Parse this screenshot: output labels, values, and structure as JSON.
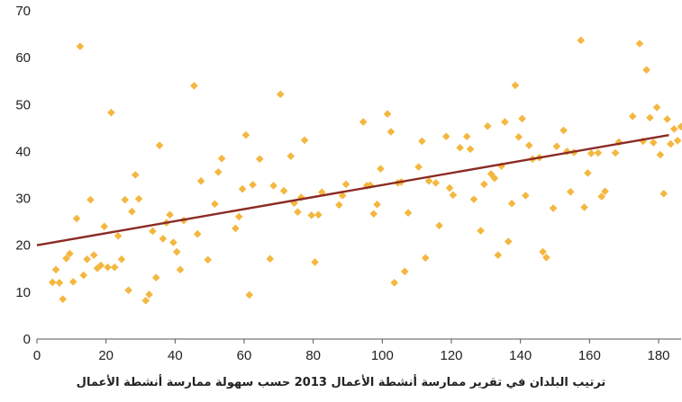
{
  "chart_data": {
    "type": "scatter",
    "title": "",
    "xlabel": "ترتيب البلدان في تقرير ممارسة أنشطة الأعمال 2013 حسب سهولة ممارسة أنشطة الأعمال",
    "ylabel": "",
    "xlim": [
      0,
      186
    ],
    "ylim": [
      0,
      70
    ],
    "x_ticks": [
      0,
      20,
      40,
      60,
      80,
      100,
      120,
      140,
      160,
      180
    ],
    "y_ticks": [
      0,
      10,
      20,
      30,
      40,
      50,
      60,
      70
    ],
    "grid": false,
    "legend": "none",
    "colors": {
      "points": "#F4B73F",
      "trendline": "#8B2A24",
      "axis": "#555555"
    },
    "trendline": {
      "x": [
        0,
        183
      ],
      "y": [
        20.0,
        43.5
      ]
    },
    "series": [
      {
        "points": [
          [
            4.5,
            12.1
          ],
          [
            5.5,
            14.8
          ],
          [
            6.5,
            12.0
          ],
          [
            7.5,
            8.5
          ],
          [
            8.5,
            17.2
          ],
          [
            9.5,
            18.2
          ],
          [
            10.5,
            12.2
          ],
          [
            11.5,
            25.7
          ],
          [
            12.5,
            62.4
          ],
          [
            13.5,
            13.6
          ],
          [
            14.5,
            17.0
          ],
          [
            15.5,
            29.7
          ],
          [
            16.5,
            17.9
          ],
          [
            17.5,
            15.1
          ],
          [
            18.5,
            15.7
          ],
          [
            19.5,
            24.0
          ],
          [
            20.5,
            15.3
          ],
          [
            21.5,
            48.3
          ],
          [
            22.5,
            15.3
          ],
          [
            23.5,
            22.0
          ],
          [
            24.5,
            17.0
          ],
          [
            25.5,
            29.7
          ],
          [
            26.5,
            10.4
          ],
          [
            27.5,
            27.2
          ],
          [
            28.5,
            35.0
          ],
          [
            29.5,
            29.9
          ],
          [
            31.5,
            8.2
          ],
          [
            32.5,
            9.5
          ],
          [
            33.5,
            23.0
          ],
          [
            34.5,
            13.1
          ],
          [
            35.5,
            41.3
          ],
          [
            36.5,
            21.4
          ],
          [
            37.5,
            24.8
          ],
          [
            38.5,
            26.5
          ],
          [
            39.5,
            20.6
          ],
          [
            40.5,
            18.6
          ],
          [
            41.5,
            14.8
          ],
          [
            42.5,
            25.3
          ],
          [
            45.5,
            54.0
          ],
          [
            46.5,
            22.4
          ],
          [
            47.5,
            33.7
          ],
          [
            49.5,
            16.9
          ],
          [
            51.5,
            28.8
          ],
          [
            52.5,
            35.6
          ],
          [
            53.5,
            38.5
          ],
          [
            57.5,
            23.6
          ],
          [
            58.5,
            26.1
          ],
          [
            59.5,
            32.0
          ],
          [
            60.5,
            43.5
          ],
          [
            61.5,
            9.4
          ],
          [
            62.5,
            32.9
          ],
          [
            64.5,
            38.4
          ],
          [
            67.5,
            17.1
          ],
          [
            68.5,
            32.7
          ],
          [
            70.5,
            52.2
          ],
          [
            71.5,
            31.6
          ],
          [
            73.5,
            39.0
          ],
          [
            74.5,
            29.0
          ],
          [
            75.5,
            27.1
          ],
          [
            76.5,
            30.2
          ],
          [
            77.5,
            42.4
          ],
          [
            79.5,
            26.4
          ],
          [
            80.5,
            16.4
          ],
          [
            81.5,
            26.5
          ],
          [
            82.5,
            31.3
          ],
          [
            87.5,
            28.6
          ],
          [
            88.5,
            30.6
          ],
          [
            89.5,
            33.0
          ],
          [
            94.5,
            46.3
          ],
          [
            95.5,
            32.7
          ],
          [
            96.5,
            32.8
          ],
          [
            97.5,
            26.7
          ],
          [
            98.5,
            28.7
          ],
          [
            99.5,
            36.3
          ],
          [
            101.5,
            48.0
          ],
          [
            102.5,
            44.2
          ],
          [
            103.5,
            12.0
          ],
          [
            104.5,
            33.3
          ],
          [
            105.5,
            33.5
          ],
          [
            106.5,
            14.4
          ],
          [
            107.5,
            26.9
          ],
          [
            110.5,
            36.7
          ],
          [
            111.5,
            42.2
          ],
          [
            112.5,
            17.3
          ],
          [
            113.5,
            33.7
          ],
          [
            115.5,
            33.3
          ],
          [
            116.5,
            24.2
          ],
          [
            118.5,
            43.2
          ],
          [
            119.5,
            32.2
          ],
          [
            120.5,
            30.7
          ],
          [
            122.5,
            40.8
          ],
          [
            124.5,
            43.2
          ],
          [
            125.5,
            40.5
          ],
          [
            126.5,
            29.8
          ],
          [
            128.5,
            23.1
          ],
          [
            129.5,
            33.0
          ],
          [
            130.5,
            45.4
          ],
          [
            131.5,
            35.2
          ],
          [
            132.5,
            34.3
          ],
          [
            133.5,
            17.9
          ],
          [
            134.5,
            36.9
          ],
          [
            135.5,
            46.3
          ],
          [
            136.5,
            20.8
          ],
          [
            137.5,
            28.9
          ],
          [
            138.5,
            54.1
          ],
          [
            139.5,
            43.1
          ],
          [
            140.5,
            47.0
          ],
          [
            141.5,
            30.6
          ],
          [
            142.5,
            41.3
          ],
          [
            143.5,
            38.4
          ],
          [
            145.5,
            38.7
          ],
          [
            146.5,
            18.6
          ],
          [
            147.5,
            17.4
          ],
          [
            149.5,
            27.9
          ],
          [
            150.5,
            41.1
          ],
          [
            152.5,
            44.5
          ],
          [
            153.5,
            40.0
          ],
          [
            154.5,
            31.4
          ],
          [
            155.5,
            39.8
          ],
          [
            157.5,
            63.7
          ],
          [
            158.5,
            28.1
          ],
          [
            159.5,
            35.4
          ],
          [
            160.5,
            39.6
          ],
          [
            162.5,
            39.7
          ],
          [
            163.5,
            30.4
          ],
          [
            164.5,
            31.5
          ],
          [
            167.5,
            39.7
          ],
          [
            168.5,
            42.0
          ],
          [
            172.5,
            47.5
          ],
          [
            174.5,
            63.0
          ],
          [
            175.5,
            42.2
          ],
          [
            176.5,
            57.4
          ],
          [
            177.5,
            47.2
          ],
          [
            178.5,
            41.9
          ],
          [
            179.5,
            49.4
          ],
          [
            180.5,
            39.3
          ],
          [
            181.5,
            31.0
          ],
          [
            182.5,
            46.9
          ],
          [
            183.5,
            41.6
          ],
          [
            184.5,
            44.8
          ],
          [
            185.5,
            42.3
          ],
          [
            186.5,
            45.3
          ]
        ]
      }
    ]
  }
}
